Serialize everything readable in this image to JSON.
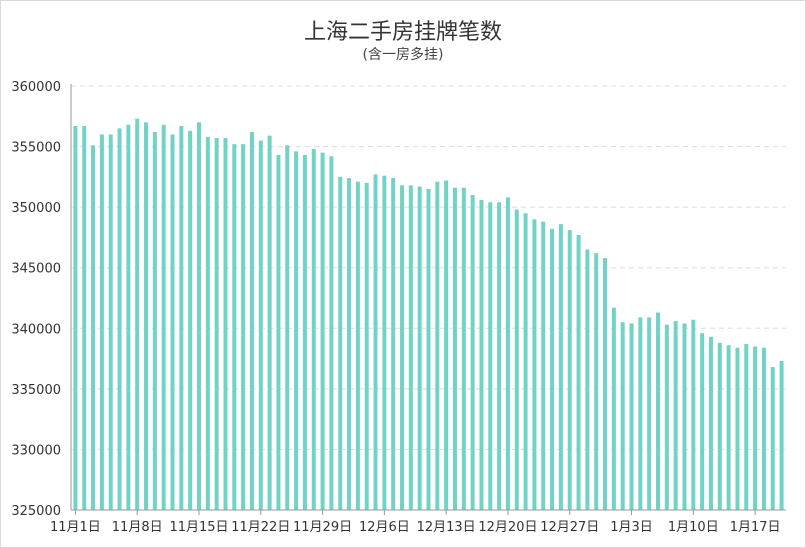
{
  "chart_data": {
    "type": "bar",
    "title": "上海二手房挂牌笔数",
    "subtitle": "(含一房多挂)",
    "xlabel": "",
    "ylabel": "",
    "ylim": [
      325000,
      360000
    ],
    "yticks": [
      325000,
      330000,
      335000,
      340000,
      345000,
      350000,
      355000,
      360000
    ],
    "xtick_labels": [
      "11月1日",
      "11月8日",
      "11月15日",
      "11月22日",
      "11月29日",
      "12月6日",
      "12月13日",
      "12月20日",
      "12月27日",
      "1月3日",
      "1月10日",
      "1月17日"
    ],
    "grid": true,
    "colors": {
      "bar": "#6fd3c6",
      "grid": "#dddddd",
      "axis": "#999999"
    },
    "series": [
      {
        "values": [
          356700,
          356700,
          355100,
          356000,
          356000,
          356500,
          356800,
          357300,
          357000,
          356200,
          356800,
          356000,
          356700,
          356300,
          357000,
          355800,
          355700,
          355700,
          355200,
          355200,
          356200,
          355500,
          355900,
          354300,
          355100,
          354600,
          354300,
          354800,
          354500,
          354200,
          352500,
          352400,
          352100,
          352000,
          352700,
          352600,
          352400,
          351800,
          351800,
          351700,
          351500,
          352100,
          352200,
          351600,
          351600,
          351000,
          350600,
          350400,
          350400,
          350800,
          349800,
          349500,
          349000,
          348800,
          348200,
          348600,
          348100,
          347700,
          346500,
          346200,
          345800,
          341700,
          340500,
          340400,
          340900,
          340900,
          341300,
          340300,
          340600,
          340400,
          340700,
          339600,
          339300,
          338800,
          338600,
          338400,
          338700,
          338500,
          338400,
          336800,
          337300
        ]
      }
    ]
  }
}
